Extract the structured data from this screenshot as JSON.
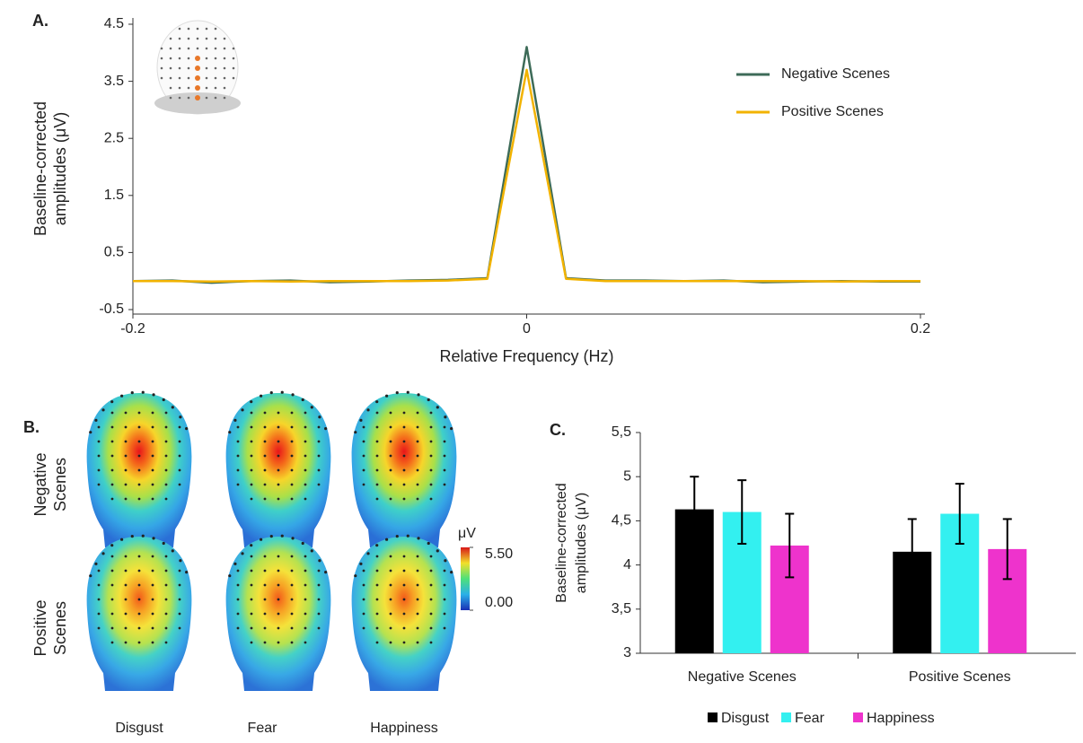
{
  "chart_data": [
    {
      "type": "line",
      "label": "A.",
      "xlabel": "Relative Frequency (Hz)",
      "ylabel": [
        "Baseline-corrected",
        "amplitudes (μV)"
      ],
      "x": [
        -0.2,
        -0.18,
        -0.16,
        -0.14,
        -0.12,
        -0.1,
        -0.08,
        -0.06,
        -0.04,
        -0.02,
        0,
        0.02,
        0.04,
        0.06,
        0.08,
        0.1,
        0.12,
        0.14,
        0.16,
        0.18,
        0.2
      ],
      "series": [
        {
          "name": "Negative Scenes",
          "color": "#3d6b58",
          "values": [
            0,
            0.01,
            -0.03,
            0,
            0.01,
            -0.02,
            -0.01,
            0.01,
            0.02,
            0.05,
            4.1,
            0.05,
            0.01,
            0.01,
            0,
            0.01,
            -0.02,
            -0.01,
            0,
            -0.01,
            -0.01
          ]
        },
        {
          "name": "Positive Scenes",
          "color": "#f2b300",
          "values": [
            0,
            0,
            -0.01,
            0,
            -0.01,
            0,
            0,
            0,
            0.01,
            0.04,
            3.7,
            0.04,
            0,
            0,
            0,
            0,
            0,
            0,
            -0.01,
            0,
            0
          ]
        }
      ],
      "xlim": [
        -0.2,
        0.2
      ],
      "xticks": [
        -0.2,
        0,
        0.2
      ],
      "ylim": [
        -0.5,
        4.5
      ],
      "yticks": [
        -0.5,
        0.5,
        1.5,
        2.5,
        3.5,
        4.5
      ],
      "legend": "upper right"
    },
    {
      "type": "topomap",
      "label": "B.",
      "rows": [
        [
          "Negative",
          "Scenes"
        ],
        [
          "Positive",
          "Scenes"
        ]
      ],
      "columns": [
        "Disgust",
        "Fear",
        "Happiness"
      ],
      "colorbar_label": "μV",
      "clim": [
        0,
        5.5
      ],
      "cticks": [
        {
          "value": 5.5,
          "label": "5.50"
        },
        {
          "value": 0,
          "label": "0.00"
        }
      ]
    },
    {
      "type": "bar",
      "label": "C.",
      "ylabel": [
        "Baseline-corrected",
        "amplitudes (μV)"
      ],
      "categories": [
        "Negative Scenes",
        "Positive Scenes"
      ],
      "series": [
        {
          "name": "Disgust",
          "color": "#000000",
          "values": [
            4.63,
            4.15
          ],
          "errors": [
            0.37,
            0.37
          ]
        },
        {
          "name": "Fear",
          "color": "#33f0f0",
          "values": [
            4.6,
            4.58
          ],
          "errors": [
            0.36,
            0.34
          ]
        },
        {
          "name": "Happiness",
          "color": "#ee33cc",
          "values": [
            4.22,
            4.18
          ],
          "errors": [
            0.36,
            0.34
          ]
        }
      ],
      "ylim": [
        3,
        5.5
      ],
      "yticks": [
        {
          "value": 3,
          "label": "3"
        },
        {
          "value": 3.5,
          "label": "3,5"
        },
        {
          "value": 4,
          "label": "4"
        },
        {
          "value": 4.5,
          "label": "4,5"
        },
        {
          "value": 5,
          "label": "5"
        },
        {
          "value": 5.5,
          "label": "5,5"
        }
      ],
      "legend": "bottom"
    }
  ]
}
